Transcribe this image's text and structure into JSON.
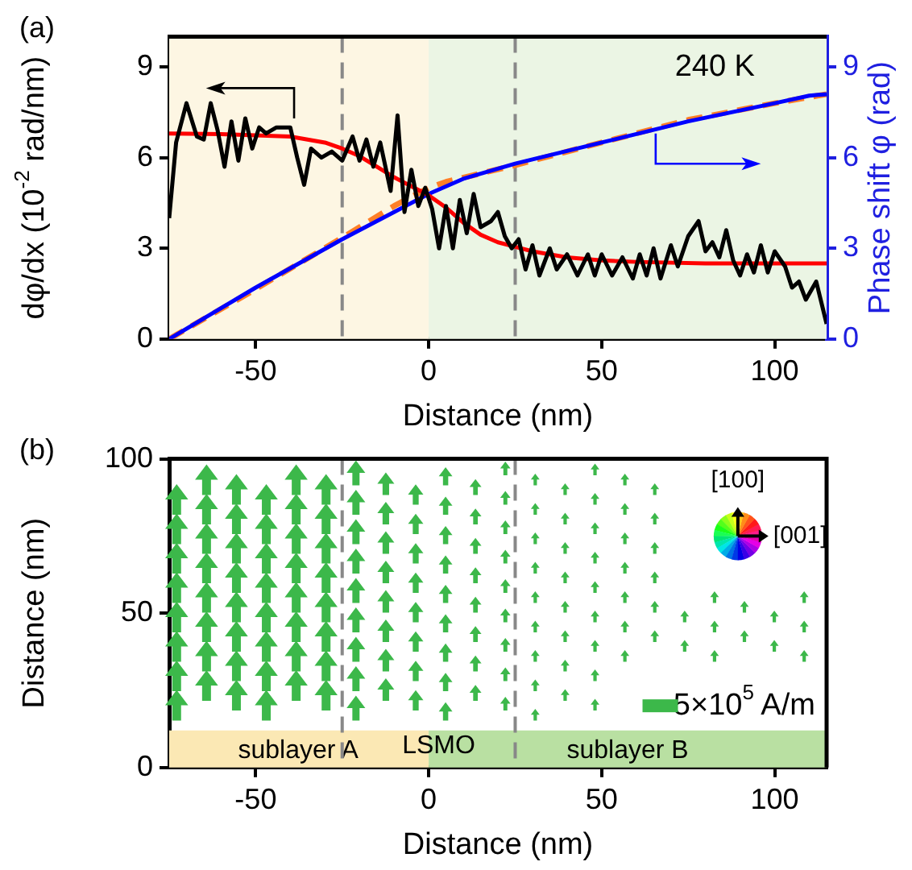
{
  "chart_data": [
    {
      "type": "line",
      "xlabel": "Distance (nm)",
      "ylabel": "dφ/dx (10$^{-2}$ rad/nm)",
      "y2label": "Phase shift φ (rad)",
      "annotations": [
        "(a)",
        "240 K"
      ],
      "xlim": [
        -75,
        115
      ],
      "xticks": [
        -50,
        0,
        50,
        100
      ],
      "ylim": [
        0,
        10
      ],
      "yticks": [
        0,
        3,
        6,
        9
      ],
      "y2lim": [
        0,
        10
      ],
      "y2ticks": [
        0,
        3,
        6,
        9
      ],
      "grid": false,
      "legend": false,
      "marker": "none",
      "bands": [
        {
          "axis": "x",
          "from": -75,
          "to": 0,
          "color": "#fdf6e3"
        },
        {
          "axis": "x",
          "from": 0,
          "to": 115,
          "color": "#ebf5e4"
        }
      ],
      "ref_lines": [
        {
          "axis": "x",
          "value": -25,
          "color": "#888888",
          "line_style": "dashed"
        },
        {
          "axis": "x",
          "value": 25,
          "color": "#888888",
          "line_style": "dashed"
        }
      ],
      "series": [
        {
          "color": "#000000",
          "line_style": "solid",
          "x": [
            -75,
            -73,
            -70,
            -67,
            -65,
            -63,
            -61,
            -59,
            -57,
            -55,
            -53,
            -51,
            -49,
            -47,
            -44,
            -40,
            -38,
            -36,
            -34,
            -31,
            -28,
            -25,
            -22,
            -20,
            -18,
            -16,
            -14,
            -11,
            -9,
            -7,
            -5,
            -3,
            -1,
            1,
            3,
            5,
            7,
            9,
            11,
            13,
            15,
            18,
            20,
            22,
            24,
            26,
            28,
            30,
            32,
            35,
            37,
            40,
            43,
            46,
            48,
            50,
            53,
            56,
            59,
            61,
            63,
            65,
            67,
            70,
            72,
            75,
            78,
            80,
            82,
            84,
            86,
            88,
            90,
            92,
            94,
            96,
            98,
            100,
            103,
            105,
            107,
            109,
            112,
            115
          ],
          "values": [
            4.0,
            6.5,
            7.8,
            6.7,
            6.6,
            7.8,
            6.9,
            5.7,
            7.2,
            5.9,
            7.3,
            6.3,
            7.0,
            6.8,
            7.0,
            7.0,
            6.0,
            5.1,
            6.3,
            6.0,
            6.2,
            5.9,
            6.7,
            5.9,
            6.6,
            5.7,
            6.5,
            4.9,
            7.4,
            4.2,
            5.6,
            4.4,
            5.0,
            4.3,
            3.0,
            4.4,
            3.0,
            4.6,
            3.5,
            4.8,
            3.7,
            3.9,
            4.2,
            3.4,
            3.0,
            3.3,
            2.3,
            3.1,
            2.1,
            3.0,
            2.3,
            2.8,
            2.1,
            2.8,
            2.1,
            2.8,
            2.1,
            2.7,
            2.0,
            2.8,
            2.1,
            3.0,
            2.0,
            3.1,
            2.4,
            3.4,
            3.9,
            2.9,
            3.2,
            2.7,
            3.6,
            2.6,
            2.1,
            2.8,
            2.2,
            3.1,
            2.2,
            2.9,
            2.4,
            1.7,
            1.9,
            1.3,
            1.9,
            0.5
          ]
        },
        {
          "color": "#ff0000",
          "line_style": "solid",
          "x": [
            -75,
            -60,
            -40,
            -30,
            -25,
            -20,
            -15,
            -10,
            -5,
            0,
            5,
            10,
            15,
            20,
            25,
            30,
            40,
            50,
            60,
            80,
            100,
            115
          ],
          "values": [
            6.8,
            6.78,
            6.7,
            6.5,
            6.3,
            6.05,
            5.7,
            5.35,
            5.05,
            4.75,
            4.35,
            3.85,
            3.45,
            3.2,
            3.05,
            2.9,
            2.7,
            2.6,
            2.55,
            2.5,
            2.5,
            2.5
          ]
        },
        {
          "color": "#0000ff",
          "line_style": "solid",
          "axis": "y2",
          "x": [
            -75,
            -50,
            -25,
            -10,
            0,
            10,
            25,
            50,
            75,
            100,
            110,
            115
          ],
          "values": [
            0,
            1.7,
            3.3,
            4.2,
            4.8,
            5.3,
            5.8,
            6.5,
            7.2,
            7.8,
            8.05,
            8.1
          ]
        },
        {
          "color": "#ff7f27",
          "line_style": "dashed",
          "axis": "y2",
          "x": [
            -75,
            -50,
            -25,
            -10,
            0,
            5,
            25,
            50,
            75,
            100,
            115
          ],
          "values": [
            0,
            1.65,
            3.35,
            4.4,
            5.0,
            5.2,
            5.75,
            6.5,
            7.25,
            7.8,
            8.1
          ]
        }
      ]
    },
    {
      "type": "scatter",
      "xlabel": "Distance (nm)",
      "ylabel": "Distance (nm)",
      "annotations": [
        "(b)",
        "[100]",
        "[001]",
        "5×10$^{5}$ A/m",
        "LSMO"
      ],
      "xlim": [
        -75,
        115
      ],
      "xticks": [
        -50,
        0,
        50,
        100
      ],
      "ylim": [
        0,
        100
      ],
      "yticks": [
        0,
        50,
        100
      ],
      "grid": false,
      "legend": false,
      "bands": [
        {
          "axis": "x",
          "from": -75,
          "to": 0,
          "color": "#fbe8b4",
          "label": "sublayer A"
        },
        {
          "axis": "x",
          "from": 0,
          "to": 115,
          "color": "#b9e0a2",
          "label": "sublayer B"
        }
      ],
      "ref_lines": [
        {
          "axis": "x",
          "value": -25,
          "color": "#888888",
          "line_style": "dashed"
        },
        {
          "axis": "x",
          "value": 25,
          "color": "#888888",
          "line_style": "dashed"
        }
      ]
    }
  ]
}
